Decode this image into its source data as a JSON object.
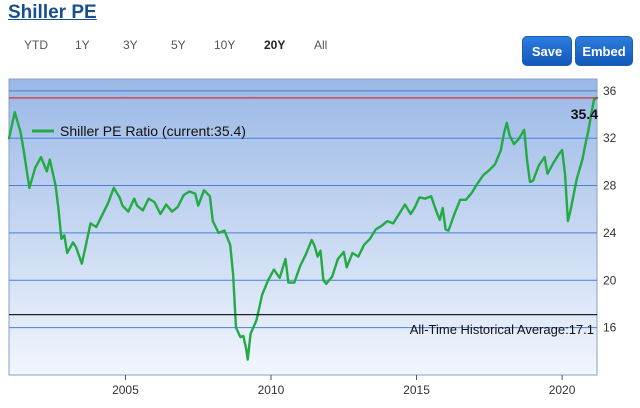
{
  "page_title": "Shiller PE",
  "ranges": [
    {
      "label": "YTD",
      "active": false
    },
    {
      "label": "1Y",
      "active": false
    },
    {
      "label": "3Y",
      "active": false
    },
    {
      "label": "5Y",
      "active": false
    },
    {
      "label": "10Y",
      "active": false
    },
    {
      "label": "20Y",
      "active": true
    },
    {
      "label": "All",
      "active": false
    }
  ],
  "buttons": {
    "save": "Save",
    "embed": "Embed"
  },
  "colors": {
    "line": "#22aa44",
    "current_line": "#dd2222",
    "average_line": "#222222",
    "bg_top": "#9ab8e6",
    "bg_bottom": "#f2f6fd",
    "grid": "#4a7fd6"
  },
  "chart_data": {
    "type": "line",
    "title": "",
    "legend": "Shiller PE Ratio (current:35.4)",
    "current_value_label": "35.4",
    "current_value": 35.4,
    "average_label": "All-Time Historical Average:17.1",
    "average_value": 17.1,
    "xlabel": "",
    "ylabel": "",
    "xlim": [
      2001.0,
      2021.2
    ],
    "ylim": [
      12,
      37
    ],
    "x_ticks": [
      2005,
      2010,
      2015,
      2020
    ],
    "y_ticks": [
      16,
      20,
      24,
      28,
      32,
      36
    ],
    "grid": true,
    "series": [
      {
        "name": "Shiller PE Ratio",
        "points": [
          [
            2001.0,
            32.0
          ],
          [
            2001.2,
            34.2
          ],
          [
            2001.4,
            32.5
          ],
          [
            2001.5,
            31.0
          ],
          [
            2001.7,
            27.8
          ],
          [
            2001.9,
            29.5
          ],
          [
            2002.1,
            30.4
          ],
          [
            2002.3,
            29.2
          ],
          [
            2002.4,
            30.2
          ],
          [
            2002.6,
            28.0
          ],
          [
            2002.7,
            26.0
          ],
          [
            2002.8,
            23.5
          ],
          [
            2002.9,
            23.8
          ],
          [
            2003.0,
            22.3
          ],
          [
            2003.2,
            23.2
          ],
          [
            2003.3,
            22.8
          ],
          [
            2003.5,
            21.4
          ],
          [
            2003.6,
            22.5
          ],
          [
            2003.8,
            24.8
          ],
          [
            2004.0,
            24.5
          ],
          [
            2004.2,
            25.5
          ],
          [
            2004.4,
            26.5
          ],
          [
            2004.6,
            27.8
          ],
          [
            2004.8,
            27.0
          ],
          [
            2004.9,
            26.3
          ],
          [
            2005.1,
            25.8
          ],
          [
            2005.3,
            26.9
          ],
          [
            2005.4,
            26.3
          ],
          [
            2005.6,
            25.9
          ],
          [
            2005.8,
            26.9
          ],
          [
            2006.0,
            26.6
          ],
          [
            2006.2,
            25.6
          ],
          [
            2006.4,
            26.4
          ],
          [
            2006.6,
            25.8
          ],
          [
            2006.8,
            26.2
          ],
          [
            2007.0,
            27.2
          ],
          [
            2007.2,
            27.5
          ],
          [
            2007.4,
            27.3
          ],
          [
            2007.5,
            26.3
          ],
          [
            2007.7,
            27.6
          ],
          [
            2007.9,
            27.1
          ],
          [
            2008.0,
            25.0
          ],
          [
            2008.2,
            24.0
          ],
          [
            2008.4,
            24.2
          ],
          [
            2008.6,
            23.0
          ],
          [
            2008.7,
            20.5
          ],
          [
            2008.8,
            16.0
          ],
          [
            2008.95,
            15.2
          ],
          [
            2009.05,
            15.3
          ],
          [
            2009.15,
            14.2
          ],
          [
            2009.2,
            13.3
          ],
          [
            2009.3,
            15.5
          ],
          [
            2009.5,
            16.6
          ],
          [
            2009.7,
            18.8
          ],
          [
            2009.9,
            20.0
          ],
          [
            2010.1,
            20.9
          ],
          [
            2010.3,
            20.2
          ],
          [
            2010.5,
            21.8
          ],
          [
            2010.6,
            19.8
          ],
          [
            2010.8,
            19.8
          ],
          [
            2011.0,
            21.2
          ],
          [
            2011.2,
            22.2
          ],
          [
            2011.4,
            23.4
          ],
          [
            2011.5,
            22.9
          ],
          [
            2011.6,
            22.0
          ],
          [
            2011.7,
            22.5
          ],
          [
            2011.8,
            20.0
          ],
          [
            2011.9,
            19.7
          ],
          [
            2012.1,
            20.3
          ],
          [
            2012.3,
            21.8
          ],
          [
            2012.5,
            22.4
          ],
          [
            2012.6,
            21.1
          ],
          [
            2012.8,
            22.3
          ],
          [
            2013.0,
            22.0
          ],
          [
            2013.2,
            23.0
          ],
          [
            2013.4,
            23.5
          ],
          [
            2013.6,
            24.3
          ],
          [
            2013.8,
            24.6
          ],
          [
            2014.0,
            25.0
          ],
          [
            2014.2,
            24.8
          ],
          [
            2014.4,
            25.6
          ],
          [
            2014.6,
            26.4
          ],
          [
            2014.8,
            25.6
          ],
          [
            2014.95,
            26.2
          ],
          [
            2015.1,
            27.0
          ],
          [
            2015.3,
            26.9
          ],
          [
            2015.5,
            27.1
          ],
          [
            2015.7,
            25.7
          ],
          [
            2015.8,
            25.1
          ],
          [
            2015.9,
            26.1
          ],
          [
            2016.0,
            24.3
          ],
          [
            2016.1,
            24.2
          ],
          [
            2016.3,
            25.6
          ],
          [
            2016.5,
            26.8
          ],
          [
            2016.7,
            26.8
          ],
          [
            2016.9,
            27.4
          ],
          [
            2017.1,
            28.2
          ],
          [
            2017.3,
            28.9
          ],
          [
            2017.5,
            29.3
          ],
          [
            2017.7,
            29.8
          ],
          [
            2017.9,
            31.0
          ],
          [
            2018.0,
            32.4
          ],
          [
            2018.1,
            33.3
          ],
          [
            2018.2,
            32.2
          ],
          [
            2018.35,
            31.5
          ],
          [
            2018.5,
            31.9
          ],
          [
            2018.7,
            32.7
          ],
          [
            2018.8,
            30.1
          ],
          [
            2018.9,
            28.3
          ],
          [
            2019.0,
            28.4
          ],
          [
            2019.2,
            29.7
          ],
          [
            2019.4,
            30.4
          ],
          [
            2019.5,
            29.0
          ],
          [
            2019.7,
            29.9
          ],
          [
            2019.9,
            30.7
          ],
          [
            2020.0,
            31.0
          ],
          [
            2020.1,
            29.0
          ],
          [
            2020.2,
            25.0
          ],
          [
            2020.3,
            26.0
          ],
          [
            2020.5,
            28.5
          ],
          [
            2020.7,
            30.2
          ],
          [
            2020.8,
            31.5
          ],
          [
            2020.9,
            32.6
          ],
          [
            2021.0,
            34.0
          ],
          [
            2021.1,
            35.3
          ],
          [
            2021.2,
            35.4
          ]
        ]
      }
    ]
  }
}
